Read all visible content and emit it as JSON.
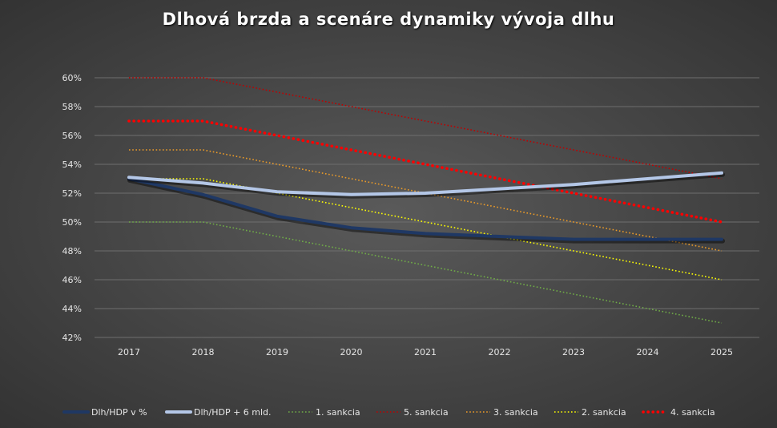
{
  "chart_data": {
    "type": "line",
    "title": "Dlhová brzda a scenáre dynamiky vývoja dlhu",
    "xlabel": "",
    "ylabel": "",
    "categories": [
      "2017",
      "2018",
      "2019",
      "2020",
      "2021",
      "2022",
      "2023",
      "2024",
      "2025"
    ],
    "ylim": [
      0.42,
      0.6
    ],
    "yticks": [
      0.42,
      0.44,
      0.46,
      0.48,
      0.5,
      0.52,
      0.54,
      0.56,
      0.58,
      0.6
    ],
    "ytick_labels": [
      "42%",
      "44%",
      "46%",
      "48%",
      "50%",
      "52%",
      "54%",
      "56%",
      "58%",
      "60%"
    ],
    "grid": true,
    "legend_position": "bottom",
    "series": [
      {
        "name": "Dlh/HDP v %",
        "color": "#1f3864",
        "style": "solid-thick",
        "values": [
          0.53,
          0.519,
          0.504,
          0.496,
          0.492,
          0.49,
          0.488,
          0.488,
          0.488
        ]
      },
      {
        "name": "Dlh/HDP + 6 mld.",
        "color": "#b4c7e7",
        "style": "solid-thick",
        "values": [
          0.531,
          0.527,
          0.521,
          0.519,
          0.52,
          0.523,
          0.526,
          0.53,
          0.534
        ]
      },
      {
        "name": "1. sankcia",
        "color": "#70ad47",
        "style": "dotted",
        "values": [
          0.5,
          0.5,
          0.49,
          0.48,
          0.47,
          0.46,
          0.45,
          0.44,
          0.43
        ]
      },
      {
        "name": "5. sankcia",
        "color": "#c00000",
        "style": "dotted",
        "values": [
          0.6,
          0.6,
          0.59,
          0.58,
          0.57,
          0.56,
          0.55,
          0.54,
          0.53
        ]
      },
      {
        "name": "3. sankcia",
        "color": "#ed9c28",
        "style": "dotted",
        "values": [
          0.55,
          0.55,
          0.54,
          0.53,
          0.52,
          0.51,
          0.5,
          0.49,
          0.48
        ]
      },
      {
        "name": "2. sankcia",
        "color": "#ffff00",
        "style": "dotted",
        "values": [
          0.53,
          0.53,
          0.52,
          0.51,
          0.5,
          0.49,
          0.48,
          0.47,
          0.46
        ]
      },
      {
        "name": "4. sankcia",
        "color": "#ff0000",
        "style": "dotted-thick",
        "values": [
          0.57,
          0.57,
          0.56,
          0.55,
          0.54,
          0.53,
          0.52,
          0.51,
          0.5
        ]
      }
    ]
  }
}
